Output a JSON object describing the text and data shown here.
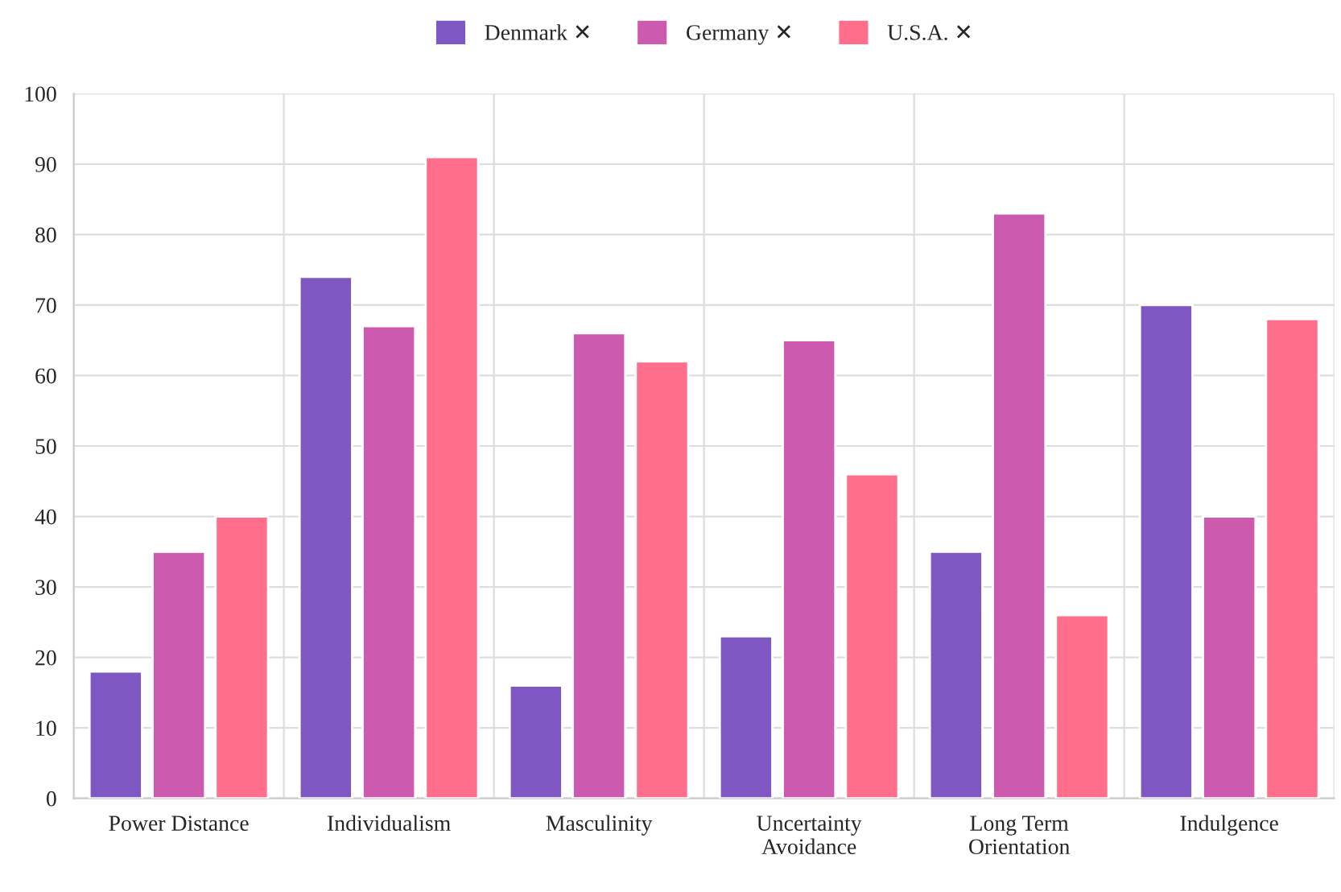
{
  "chart_data": {
    "type": "bar",
    "categories": [
      "Power Distance",
      "Individualism",
      "Masculinity",
      "Uncertainty\nAvoidance",
      "Long Term\nOrientation",
      "Indulgence"
    ],
    "series": [
      {
        "name": "Denmark ✕",
        "color": "#7e57c2",
        "values": [
          18,
          74,
          16,
          23,
          35,
          70
        ]
      },
      {
        "name": "Germany ✕",
        "color": "#cc5aae",
        "values": [
          35,
          67,
          66,
          65,
          83,
          40
        ]
      },
      {
        "name": "U.S.A. ✕",
        "color": "#ff6f8c",
        "values": [
          40,
          91,
          62,
          46,
          26,
          68
        ]
      }
    ],
    "ylim": [
      0,
      100
    ],
    "yticks": [
      0,
      10,
      20,
      30,
      40,
      50,
      60,
      70,
      80,
      90,
      100
    ],
    "grid": true,
    "legend": "top"
  }
}
